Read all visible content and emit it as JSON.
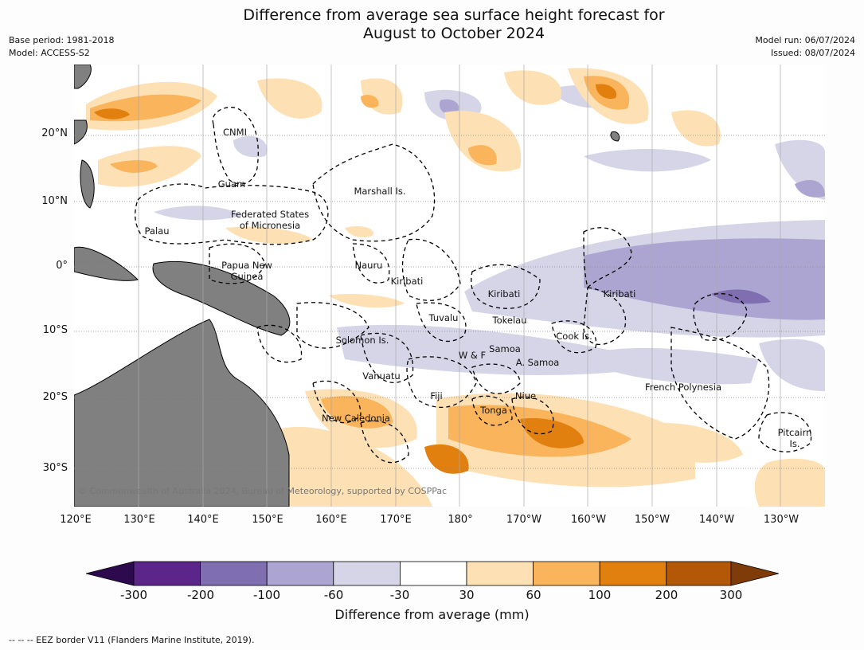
{
  "title": {
    "line1": "Difference from average sea surface height forecast for",
    "line2": "August to October 2024"
  },
  "meta": {
    "base_period": "Base period: 1981-2018",
    "model": "Model: ACCESS-S2",
    "model_run": "Model run: 06/07/2024",
    "issued": "Issued: 08/07/2024"
  },
  "axes": {
    "lat_labels": [
      "20°N",
      "10°N",
      "0°",
      "10°S",
      "20°S",
      "30°S"
    ],
    "lon_labels": [
      "120°E",
      "130°E",
      "140°E",
      "150°E",
      "160°E",
      "170°E",
      "180°",
      "170°W",
      "160°W",
      "150°W",
      "140°W",
      "130°W"
    ]
  },
  "places": {
    "cnmi": "CNMI",
    "guam": "Guam",
    "marshall": "Marshall Is.",
    "fsm1": "Federated States",
    "fsm2": "of Micronesia",
    "palau": "Palau",
    "png1": "Papua New",
    "png2": "Guinea",
    "nauru": "Nauru",
    "kiribati_w": "Kiribati",
    "kiribati_c": "Kiribati",
    "kiribati_e": "Kiribati",
    "tuvalu": "Tuvalu",
    "tokelau": "Tokelau",
    "cook": "Cook Is.",
    "solomon": "Solomon Is.",
    "wf": "W & F",
    "samoa": "Samoa",
    "asamoa": "A. Samoa",
    "vanuatu": "Vanuatu",
    "fiji": "Fiji",
    "niue": "Niue",
    "frenchpoly": "French Polynesia",
    "tonga": "Tonga",
    "newcal": "New Caledonia",
    "pitcairn1": "Pitcairn",
    "pitcairn2": "Is."
  },
  "copyright": "© Commonwealth of Australia 2024, Bureau of Meteorology, supported by COSPPac",
  "colorbar": {
    "ticks": [
      "-300",
      "-200",
      "-100",
      "-60",
      "-30",
      "30",
      "60",
      "100",
      "200",
      "300"
    ],
    "colors": [
      "#2d0a4e",
      "#5b2589",
      "#7f6fb0",
      "#ada5d1",
      "#d6d5e8",
      "#ffffff",
      "#fde0b4",
      "#f9b45c",
      "#e2800f",
      "#b35806",
      "#7f3b08"
    ],
    "label": "Difference from average (mm)"
  },
  "footnote": "-- -- -- EEZ border V11 (Flanders Marine Institute, 2019)."
}
